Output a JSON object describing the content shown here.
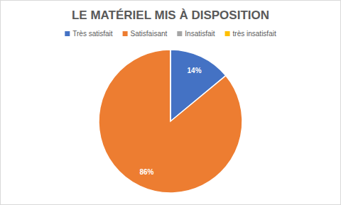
{
  "chart_data": {
    "type": "pie",
    "title": "LE MATÉRIEL MIS À DISPOSITION",
    "categories": [
      "Très satisfait",
      "Satisfaisant",
      "Insatisfait",
      "très insatisfait"
    ],
    "values": [
      14,
      86,
      0,
      0
    ],
    "value_labels": [
      "14%",
      "86%",
      null,
      null
    ],
    "colors": [
      "#4472c4",
      "#ed7d31",
      "#a5a5a5",
      "#ffc000"
    ],
    "data_labels": true,
    "legend": "top"
  }
}
